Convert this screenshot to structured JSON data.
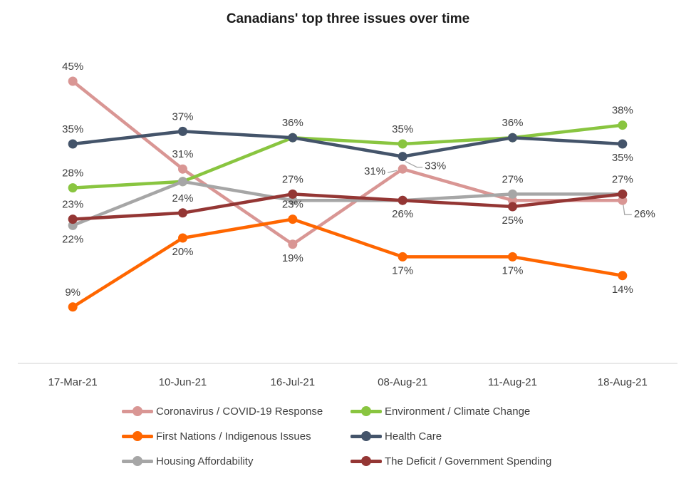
{
  "title": "Canadians' top three issues over time",
  "chart_data": {
    "type": "line",
    "title": "Canadians' top three issues over time",
    "x": [
      "17-Mar-21",
      "10-Jun-21",
      "16-Jul-21",
      "08-Aug-21",
      "11-Aug-21",
      "18-Aug-21"
    ],
    "xlabel": "",
    "ylabel": "",
    "ylim": [
      0,
      50
    ],
    "grid": false,
    "y_axis_shown": false,
    "legend_position": "bottom-two-columns",
    "series": [
      {
        "name": "Coronavirus / COVID-19 Response",
        "color": "#d99694",
        "values": [
          45,
          31,
          19,
          31,
          26,
          26
        ],
        "labels": [
          "45%",
          "31%",
          "19%",
          "31%",
          null,
          "26%"
        ],
        "label_pos": [
          "above",
          "above",
          "below",
          "callout-left",
          null,
          "callout-right"
        ]
      },
      {
        "name": "Environment / Climate Change",
        "color": "#89c540",
        "values": [
          28,
          29,
          36,
          35,
          36,
          38
        ],
        "labels": [
          "28%",
          null,
          null,
          "35%",
          null,
          "38%"
        ],
        "label_pos": [
          "above",
          null,
          null,
          "above",
          null,
          "above"
        ]
      },
      {
        "name": "First Nations / Indigenous Issues",
        "color": "#ff6600",
        "values": [
          9,
          20,
          23,
          17,
          17,
          14
        ],
        "labels": [
          "9%",
          "20%",
          "23%",
          "17%",
          "17%",
          "14%"
        ],
        "label_pos": [
          "above",
          "below",
          "above",
          "below",
          "below",
          "below"
        ]
      },
      {
        "name": "Health Care",
        "color": "#44546a",
        "values": [
          35,
          37,
          36,
          33,
          36,
          35
        ],
        "labels": [
          "35%",
          "37%",
          "36%",
          "33%",
          "36%",
          "35%"
        ],
        "label_pos": [
          "above",
          "above",
          "above",
          "callout-right-down",
          "above",
          "below"
        ]
      },
      {
        "name": "Housing Affordability",
        "color": "#a6a6a6",
        "values": [
          22,
          29,
          26,
          26,
          27,
          27
        ],
        "labels": [
          "22%",
          null,
          null,
          null,
          "27%",
          null
        ],
        "label_pos": [
          "below",
          null,
          null,
          null,
          "above",
          null
        ]
      },
      {
        "name": "The Deficit / Government Spending",
        "color": "#943634",
        "values": [
          23,
          24,
          27,
          26,
          25,
          27
        ],
        "labels": [
          "23%",
          "24%",
          "27%",
          "26%",
          "25%",
          "27%"
        ],
        "label_pos": [
          "above",
          "above",
          "above",
          "below",
          "below",
          "above"
        ]
      }
    ],
    "style": {
      "axis_line_color": "#d9d9d9",
      "data_label_color": "#3f3f3f",
      "leader_line_color": "#a6a6a6",
      "background": "#ffffff"
    }
  }
}
